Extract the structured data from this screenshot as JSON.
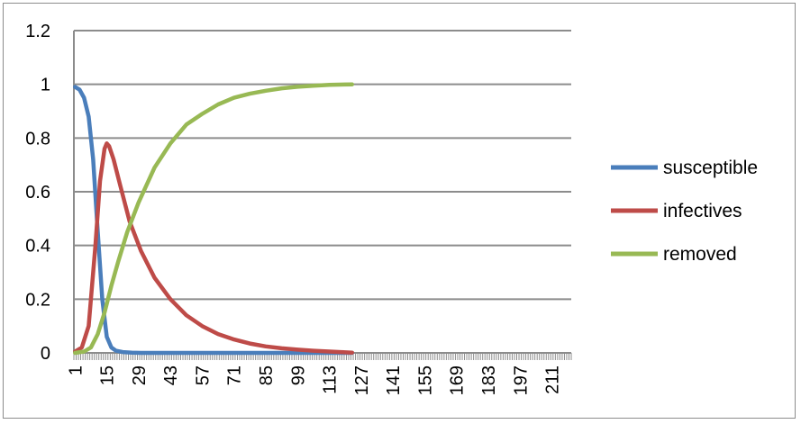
{
  "chart_data": {
    "type": "line",
    "title": "",
    "xlabel": "",
    "ylabel": "",
    "ylim": [
      0,
      1.2
    ],
    "y_ticks": [
      "0",
      "0.2",
      "0.4",
      "0.6",
      "0.8",
      "1",
      "1.2"
    ],
    "x_range": [
      1,
      219
    ],
    "x_ticks": [
      "1",
      "15",
      "29",
      "43",
      "57",
      "71",
      "85",
      "99",
      "113",
      "127",
      "141",
      "155",
      "169",
      "183",
      "197",
      "211"
    ],
    "grid": true,
    "legend_position": "right",
    "series": [
      {
        "name": "susceptible",
        "color": "#4a7ebb",
        "x": [
          1,
          3,
          5,
          7,
          9,
          11,
          13,
          15,
          17,
          19,
          22,
          26,
          30,
          40,
          60,
          123
        ],
        "values": [
          0.99,
          0.98,
          0.95,
          0.88,
          0.72,
          0.45,
          0.2,
          0.06,
          0.02,
          0.008,
          0.003,
          0.001,
          0.0,
          0.0,
          0.0,
          0.0
        ]
      },
      {
        "name": "infectives",
        "color": "#be4b48",
        "x": [
          1,
          4,
          7,
          10,
          12,
          14,
          15,
          16,
          18,
          21,
          25,
          30,
          36,
          43,
          50,
          57,
          64,
          71,
          78,
          85,
          92,
          99,
          106,
          113,
          118,
          123
        ],
        "values": [
          0.005,
          0.02,
          0.1,
          0.4,
          0.64,
          0.76,
          0.78,
          0.77,
          0.72,
          0.62,
          0.49,
          0.38,
          0.28,
          0.2,
          0.14,
          0.1,
          0.07,
          0.05,
          0.035,
          0.024,
          0.017,
          0.012,
          0.008,
          0.005,
          0.003,
          0.001
        ]
      },
      {
        "name": "removed",
        "color": "#98b954",
        "x": [
          1,
          5,
          8,
          11,
          14,
          17,
          20,
          24,
          29,
          36,
          43,
          50,
          57,
          64,
          71,
          78,
          85,
          92,
          99,
          106,
          113,
          123
        ],
        "values": [
          0.0,
          0.005,
          0.02,
          0.07,
          0.15,
          0.25,
          0.34,
          0.45,
          0.56,
          0.69,
          0.78,
          0.85,
          0.89,
          0.925,
          0.95,
          0.965,
          0.976,
          0.985,
          0.991,
          0.995,
          0.998,
          1.0
        ]
      }
    ]
  }
}
